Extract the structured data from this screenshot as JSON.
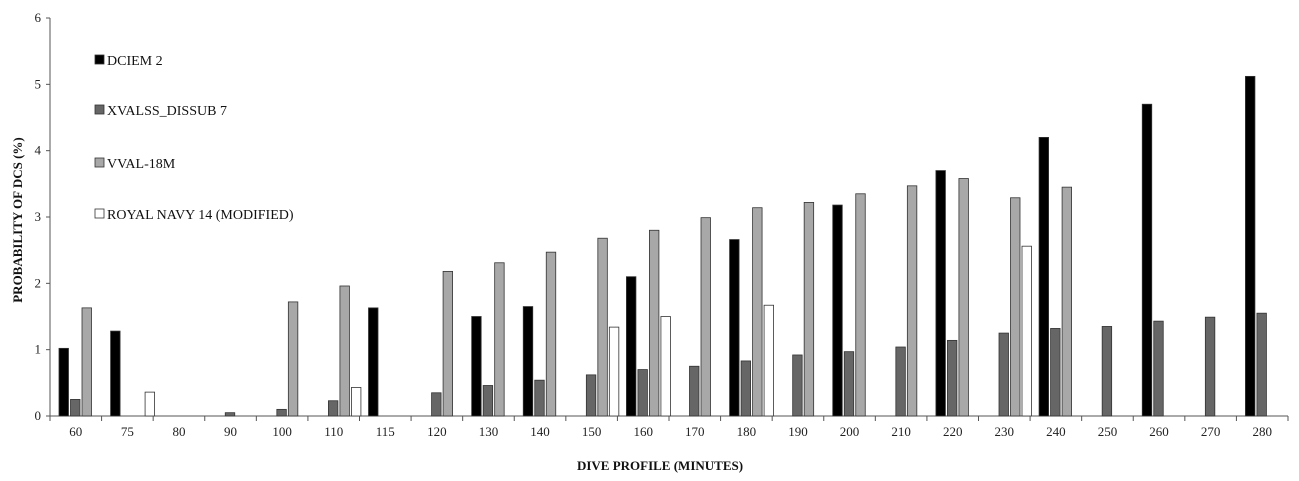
{
  "chart_data": {
    "type": "bar",
    "xlabel": "DIVE PROFILE (MINUTES)",
    "ylabel": "PROBABILITY OF DCS (%)",
    "ylim": [
      0,
      6
    ],
    "yticks": [
      0,
      1,
      2,
      3,
      4,
      5,
      6
    ],
    "grid": false,
    "legend_position": "top-left",
    "categories": [
      "60",
      "75",
      "80",
      "90",
      "100",
      "110",
      "115",
      "120",
      "130",
      "140",
      "150",
      "160",
      "170",
      "180",
      "190",
      "200",
      "210",
      "220",
      "230",
      "240",
      "250",
      "260",
      "270",
      "280"
    ],
    "series": [
      {
        "name": "DCIEM 2",
        "color": "#000000",
        "values": [
          1.02,
          1.28,
          null,
          null,
          null,
          null,
          1.63,
          null,
          1.5,
          1.65,
          null,
          2.1,
          null,
          2.66,
          null,
          3.18,
          null,
          3.7,
          null,
          4.2,
          null,
          4.7,
          null,
          5.12
        ]
      },
      {
        "name": "XVALSS_DISSUB 7",
        "color": "#666666",
        "values": [
          0.25,
          null,
          null,
          0.05,
          0.1,
          0.23,
          null,
          0.35,
          0.46,
          0.54,
          0.62,
          0.7,
          0.75,
          0.83,
          0.92,
          0.97,
          1.04,
          1.14,
          1.25,
          1.32,
          1.35,
          1.43,
          1.49,
          1.55
        ]
      },
      {
        "name": "VVAL-18M",
        "color": "#a8a8a8",
        "values": [
          1.63,
          null,
          null,
          null,
          1.72,
          1.96,
          null,
          2.18,
          2.31,
          2.47,
          2.68,
          2.8,
          2.99,
          3.14,
          3.22,
          3.35,
          3.47,
          3.58,
          3.29,
          3.45,
          null,
          null,
          null,
          null
        ]
      },
      {
        "name": "ROYAL NAVY 14 (MODIFIED)",
        "color": "#ffffff",
        "values": [
          null,
          0.36,
          null,
          null,
          null,
          0.43,
          null,
          null,
          null,
          null,
          1.34,
          1.5,
          null,
          1.67,
          null,
          null,
          null,
          null,
          2.56,
          null,
          null,
          null,
          null,
          null
        ]
      }
    ]
  }
}
